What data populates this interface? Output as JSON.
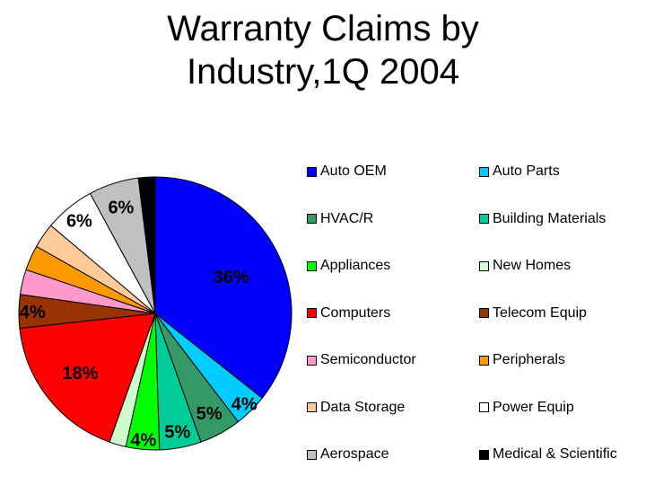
{
  "chart_data": {
    "type": "pie",
    "title_lines": [
      "Warranty Claims by",
      "Industry,1Q 2004"
    ],
    "legend_placement": "right",
    "slices": [
      {
        "name": "Auto OEM",
        "value": 36,
        "color": "#0000ff",
        "label": "36%"
      },
      {
        "name": "Auto Parts",
        "value": 4,
        "color": "#00ccff",
        "label": "4%"
      },
      {
        "name": "HVAC/R",
        "value": 5,
        "color": "#339966",
        "label": "5%"
      },
      {
        "name": "Building Materials",
        "value": 5,
        "color": "#00cc99",
        "label": "5%"
      },
      {
        "name": "Appliances",
        "value": 4,
        "color": "#00ff00",
        "label": "4%"
      },
      {
        "name": "New Homes",
        "value": 2,
        "color": "#ccffcc",
        "label": ""
      },
      {
        "name": "Computers",
        "value": 18,
        "color": "#ff0000",
        "label": "18%"
      },
      {
        "name": "Telecom Equip",
        "value": 4,
        "color": "#993300",
        "label": "4%"
      },
      {
        "name": "Semiconductor",
        "value": 3,
        "color": "#ff99cc",
        "label": ""
      },
      {
        "name": "Peripherals",
        "value": 3,
        "color": "#ff9900",
        "label": ""
      },
      {
        "name": "Data Storage",
        "value": 3,
        "color": "#ffcc99",
        "label": ""
      },
      {
        "name": "Power Equip",
        "value": 6,
        "color": "#ffffff",
        "label": "6%"
      },
      {
        "name": "Aerospace",
        "value": 6,
        "color": "#c0c0c0",
        "label": "6%"
      },
      {
        "name": "Medical & Scientific",
        "value": 2,
        "color": "#000000",
        "label": ""
      }
    ]
  }
}
